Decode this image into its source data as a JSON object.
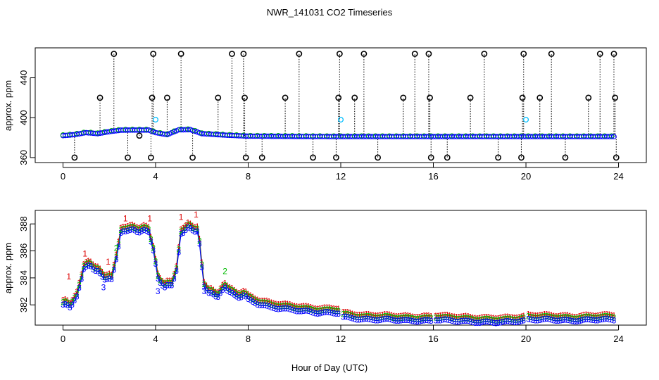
{
  "chart_data": [
    {
      "type": "scatter",
      "title": "NWR_141031  CO2 Timeseries",
      "xlabel": "",
      "ylabel": "approx. ppm",
      "xlim": [
        -1.2,
        25.2
      ],
      "ylim": [
        355,
        470
      ],
      "xticks": [
        0,
        4,
        8,
        12,
        16,
        20,
        24
      ],
      "xtick_labels": [
        "0",
        "4",
        "8",
        "12",
        "16",
        "20",
        "24"
      ],
      "yticks": [
        360,
        400,
        440
      ],
      "ytick_labels": [
        "360",
        "400",
        "440"
      ],
      "colors": {
        "measured": "#000000",
        "series": "#0000ff",
        "series2": "#00bb00",
        "reference": "#00bfff"
      },
      "baseline": [
        [
          0,
          382
        ],
        [
          0.5,
          383
        ],
        [
          1.0,
          385
        ],
        [
          1.5,
          384
        ],
        [
          2.0,
          386
        ],
        [
          2.5,
          387.5
        ],
        [
          3.0,
          387.6
        ],
        [
          3.7,
          387.6
        ],
        [
          4.0,
          385
        ],
        [
          4.5,
          383
        ],
        [
          5.0,
          387.8
        ],
        [
          5.5,
          388
        ],
        [
          6.0,
          384
        ],
        [
          7.0,
          382.5
        ],
        [
          8.0,
          381.5
        ],
        [
          10.0,
          381.2
        ],
        [
          12.0,
          381
        ],
        [
          16.0,
          381
        ],
        [
          20.0,
          381
        ],
        [
          24.0,
          381
        ]
      ],
      "spikes": [
        {
          "x": 0.5,
          "y": 360
        },
        {
          "x": 1.6,
          "y": 420
        },
        {
          "x": 2.2,
          "y": 464
        },
        {
          "x": 2.8,
          "y": 360
        },
        {
          "x": 3.3,
          "y": 382
        },
        {
          "x": 3.8,
          "y": 360
        },
        {
          "x": 3.85,
          "y": 420
        },
        {
          "x": 3.9,
          "y": 464
        },
        {
          "x": 4.5,
          "y": 420
        },
        {
          "x": 5.1,
          "y": 464
        },
        {
          "x": 5.6,
          "y": 360
        },
        {
          "x": 6.7,
          "y": 420
        },
        {
          "x": 7.3,
          "y": 464
        },
        {
          "x": 7.8,
          "y": 464
        },
        {
          "x": 7.85,
          "y": 420
        },
        {
          "x": 7.9,
          "y": 360
        },
        {
          "x": 8.6,
          "y": 360
        },
        {
          "x": 9.6,
          "y": 420
        },
        {
          "x": 10.2,
          "y": 464
        },
        {
          "x": 10.8,
          "y": 360
        },
        {
          "x": 11.8,
          "y": 360
        },
        {
          "x": 11.9,
          "y": 420
        },
        {
          "x": 11.95,
          "y": 464
        },
        {
          "x": 12.6,
          "y": 420
        },
        {
          "x": 13.0,
          "y": 464
        },
        {
          "x": 13.6,
          "y": 360
        },
        {
          "x": 14.7,
          "y": 420
        },
        {
          "x": 15.2,
          "y": 464
        },
        {
          "x": 15.8,
          "y": 464
        },
        {
          "x": 15.85,
          "y": 420
        },
        {
          "x": 15.9,
          "y": 360
        },
        {
          "x": 16.6,
          "y": 360
        },
        {
          "x": 17.6,
          "y": 420
        },
        {
          "x": 18.2,
          "y": 464
        },
        {
          "x": 18.8,
          "y": 360
        },
        {
          "x": 19.8,
          "y": 360
        },
        {
          "x": 19.85,
          "y": 420
        },
        {
          "x": 19.9,
          "y": 464
        },
        {
          "x": 20.6,
          "y": 420
        },
        {
          "x": 21.1,
          "y": 464
        },
        {
          "x": 21.7,
          "y": 360
        },
        {
          "x": 22.7,
          "y": 420
        },
        {
          "x": 23.2,
          "y": 464
        },
        {
          "x": 23.8,
          "y": 464
        },
        {
          "x": 23.85,
          "y": 420
        },
        {
          "x": 23.9,
          "y": 360
        }
      ],
      "reference_points": [
        {
          "x": 4.0,
          "y": 398
        },
        {
          "x": 12.0,
          "y": 398
        },
        {
          "x": 20.0,
          "y": 398
        }
      ]
    },
    {
      "type": "line",
      "title": "",
      "xlabel": "Hour of Day (UTC)",
      "ylabel": "approx. ppm",
      "xlim": [
        -1.2,
        25.2
      ],
      "ylim": [
        380.5,
        389.0
      ],
      "xticks": [
        0,
        4,
        8,
        12,
        16,
        20,
        24
      ],
      "xtick_labels": [
        "0",
        "4",
        "8",
        "12",
        "16",
        "20",
        "24"
      ],
      "yticks": [
        382,
        384,
        386,
        388
      ],
      "ytick_labels": [
        "382",
        "384",
        "386",
        "388"
      ],
      "gaps": [
        [
          11.95,
          12.05
        ],
        [
          15.95,
          16.05
        ],
        [
          19.95,
          20.05
        ]
      ],
      "series": [
        {
          "name": "1",
          "color": "#dd0000",
          "offset": 0.35
        },
        {
          "name": "2",
          "color": "#00bb00",
          "offset": 0.2
        },
        {
          "name": "3",
          "color": "#0000ff",
          "offset": 0.0
        }
      ],
      "base_curve": [
        [
          0.0,
          382.0
        ],
        [
          0.3,
          381.8
        ],
        [
          0.6,
          382.6
        ],
        [
          0.9,
          384.7
        ],
        [
          1.2,
          384.8
        ],
        [
          1.5,
          384.5
        ],
        [
          1.8,
          383.9
        ],
        [
          2.1,
          383.8
        ],
        [
          2.3,
          385.5
        ],
        [
          2.5,
          387.3
        ],
        [
          2.8,
          387.5
        ],
        [
          3.2,
          387.5
        ],
        [
          3.7,
          387.4
        ],
        [
          3.9,
          386.0
        ],
        [
          4.1,
          384.0
        ],
        [
          4.4,
          383.2
        ],
        [
          4.7,
          383.5
        ],
        [
          4.9,
          384.5
        ],
        [
          5.1,
          387.3
        ],
        [
          5.4,
          387.6
        ],
        [
          5.8,
          387.5
        ],
        [
          5.95,
          386.0
        ],
        [
          6.05,
          383.5
        ],
        [
          6.3,
          382.8
        ],
        [
          6.7,
          382.7
        ],
        [
          7.0,
          383.2
        ],
        [
          7.4,
          382.7
        ],
        [
          7.8,
          382.6
        ],
        [
          8.0,
          382.4
        ],
        [
          8.5,
          382.0
        ],
        [
          9.0,
          381.8
        ],
        [
          10.0,
          381.6
        ],
        [
          11.0,
          381.4
        ],
        [
          11.95,
          381.4
        ],
        [
          12.05,
          381.1
        ],
        [
          13.0,
          380.9
        ],
        [
          14.0,
          380.9
        ],
        [
          15.0,
          380.8
        ],
        [
          15.95,
          380.8
        ],
        [
          16.05,
          380.9
        ],
        [
          17.0,
          380.8
        ],
        [
          18.0,
          380.7
        ],
        [
          19.0,
          380.7
        ],
        [
          19.95,
          380.8
        ],
        [
          20.05,
          380.9
        ],
        [
          21.0,
          380.9
        ],
        [
          22.0,
          380.8
        ],
        [
          23.0,
          380.9
        ],
        [
          23.8,
          380.9
        ]
      ],
      "label_points": [
        {
          "series": "1",
          "x": 0.25,
          "y": 384.1
        },
        {
          "series": "1",
          "x": 0.95,
          "y": 385.8
        },
        {
          "series": "1",
          "x": 1.95,
          "y": 385.2
        },
        {
          "series": "1",
          "x": 2.7,
          "y": 388.4
        },
        {
          "series": "1",
          "x": 3.75,
          "y": 388.4
        },
        {
          "series": "1",
          "x": 5.1,
          "y": 388.5
        },
        {
          "series": "1",
          "x": 5.75,
          "y": 388.7
        },
        {
          "series": "2",
          "x": 2.3,
          "y": 386.2
        },
        {
          "series": "2",
          "x": 7.0,
          "y": 384.5
        },
        {
          "series": "3",
          "x": 1.75,
          "y": 383.3
        },
        {
          "series": "3",
          "x": 4.1,
          "y": 383.0
        },
        {
          "series": "3",
          "x": 6.1,
          "y": 383.0
        }
      ]
    }
  ]
}
